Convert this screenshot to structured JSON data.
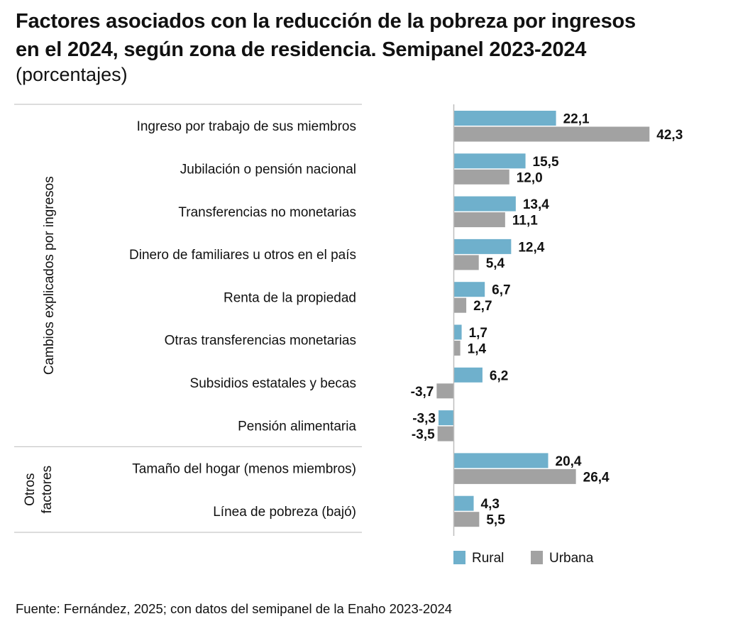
{
  "chart_data": {
    "type": "bar",
    "orientation": "horizontal",
    "title": "Factores asociados con la reducción de la pobreza por ingresos en el 2024, según zona de residencia. Semipanel 2023-2024",
    "title_line1": "Factores asociados con la reducción de la pobreza por ingresos",
    "title_line2": "en el 2024, según zona de residencia. Semipanel 2023-2024",
    "subtitle": "(porcentajes)",
    "xlabel": "",
    "ylabel": "",
    "xlim": [
      -5,
      45
    ],
    "grid": false,
    "legend_position": "bottom",
    "categories": [
      "Ingreso por trabajo de sus miembros",
      "Jubilación o pensión nacional",
      "Transferencias no monetarias",
      "Dinero de familiares u otros  en el país",
      "Renta de la propiedad",
      "Otras transferencias monetarias",
      "Subsidios estatales y becas",
      "Pensión alimentaria",
      "Tamaño del hogar (menos miembros)",
      "Línea de pobreza (bajó)"
    ],
    "groups": [
      {
        "label": "Cambios explicados por ingresos",
        "label_lines": [
          "Cambios explicados por ingresos"
        ],
        "from": 0,
        "to": 7
      },
      {
        "label": "Otros factores",
        "label_lines": [
          "Otros",
          "factores"
        ],
        "from": 8,
        "to": 9
      }
    ],
    "series": [
      {
        "name": "Rural",
        "color": "#6fb0cc",
        "values": [
          22.1,
          15.5,
          13.4,
          12.4,
          6.7,
          1.7,
          6.2,
          -3.3,
          20.4,
          4.3
        ],
        "labels": [
          "22,1",
          "15,5",
          "13,4",
          "12,4",
          "6,7",
          "1,7",
          "6,2",
          "-3,3",
          "20,4",
          "4,3"
        ]
      },
      {
        "name": "Urbana",
        "color": "#a2a2a2",
        "values": [
          42.3,
          12.0,
          11.1,
          5.4,
          2.7,
          1.4,
          -3.7,
          -3.5,
          26.4,
          5.5
        ],
        "labels": [
          "42,3",
          "12,0",
          "11,1",
          "5,4",
          "2,7",
          "1,4",
          "-3,7",
          "-3,5",
          "26,4",
          "5,5"
        ]
      }
    ]
  },
  "source": "Fuente: Fernández, 2025; con datos del semipanel de la Enaho 2023-2024"
}
